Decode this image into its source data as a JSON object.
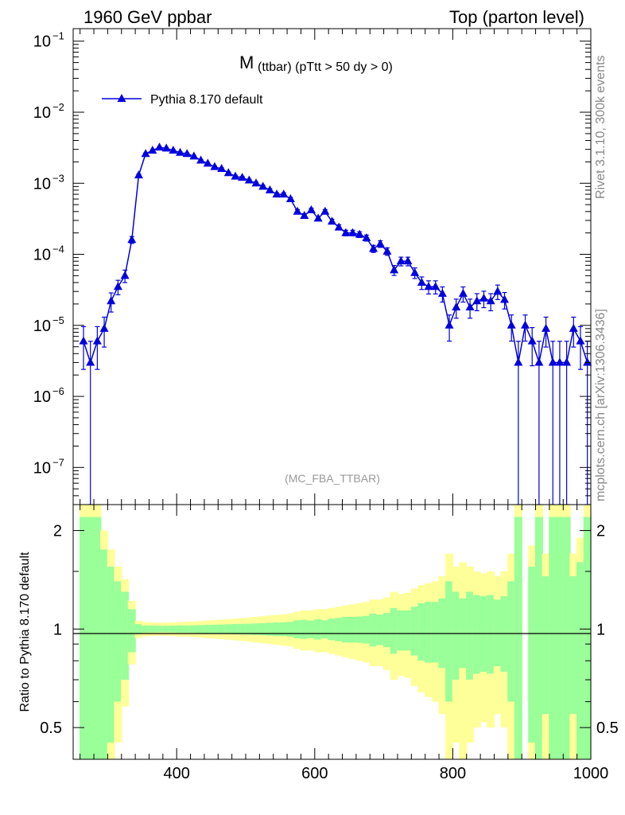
{
  "header": {
    "left": "1960 GeV ppbar",
    "right": "Top (parton level)"
  },
  "side_labels": {
    "top": "Rivet 3.1.10,  300k events",
    "bottom": "mcplots.cern.ch [arXiv:1306.3436]"
  },
  "chart_data": {
    "type": "line",
    "title_main": "M",
    "title_rest": "(ttbar) (pTtt > 50 dy > 0)",
    "watermark": "(MC_FBA_TTBAR)",
    "xlabel": "",
    "ylabel": "",
    "xlim": [
      250,
      1000
    ],
    "ylim": [
      3e-08,
      0.15
    ],
    "y_scale": "log",
    "x_ticks": [
      "400",
      "600",
      "800",
      "1000"
    ],
    "y_ticks_base": [
      "10",
      "10",
      "10",
      "10",
      "10",
      "10",
      "10"
    ],
    "y_ticks_exp": [
      "−1",
      "−2",
      "−3",
      "−4",
      "−5",
      "−6",
      "−7"
    ],
    "legend": {
      "placement": "top-left",
      "entries": [
        "Pythia 8.170 default"
      ]
    },
    "series": [
      {
        "name": "Pythia 8.170 default",
        "color": "#0000dd",
        "x": [
          265,
          275,
          285,
          295,
          305,
          315,
          325,
          335,
          345,
          355,
          365,
          375,
          385,
          395,
          405,
          415,
          425,
          435,
          445,
          455,
          465,
          475,
          485,
          495,
          505,
          515,
          525,
          535,
          545,
          555,
          565,
          575,
          585,
          595,
          605,
          615,
          625,
          635,
          645,
          655,
          665,
          675,
          685,
          695,
          705,
          715,
          725,
          735,
          745,
          755,
          765,
          775,
          785,
          795,
          805,
          815,
          825,
          835,
          845,
          855,
          865,
          875,
          885,
          895,
          905,
          915,
          925,
          935,
          945,
          955,
          965,
          975,
          985,
          995
        ],
        "y": [
          6e-06,
          3e-06,
          6e-06,
          9e-06,
          2.2e-05,
          3.5e-05,
          5e-05,
          0.00016,
          0.0013,
          0.0026,
          0.0029,
          0.0032,
          0.0031,
          0.0029,
          0.0027,
          0.0026,
          0.0024,
          0.0021,
          0.0019,
          0.0017,
          0.0016,
          0.0014,
          0.00125,
          0.0012,
          0.0011,
          0.001,
          0.0009,
          0.0008,
          0.0007,
          0.0007,
          0.0006,
          0.0004,
          0.00035,
          0.00042,
          0.00032,
          0.0004,
          0.00029,
          0.00024,
          0.0002,
          0.0002,
          0.00019,
          0.00017,
          0.00012,
          0.00014,
          0.00011,
          6e-05,
          8e-05,
          8e-05,
          5.5e-05,
          4e-05,
          3.5e-05,
          3.5e-05,
          2.8e-05,
          1e-05,
          1.8e-05,
          2.8e-05,
          1.8e-05,
          2.2e-05,
          2.4e-05,
          2.2e-05,
          3e-05,
          2.3e-05,
          1e-05,
          3e-06,
          1e-05,
          6e-06,
          3e-06,
          9e-06,
          3e-06,
          3e-06,
          3e-06,
          9e-06,
          6e-06,
          3e-06
        ],
        "err": [
          0.6,
          0.99,
          0.6,
          0.45,
          0.3,
          0.23,
          0.2,
          0.11,
          0.035,
          0.025,
          0.024,
          0.023,
          0.023,
          0.024,
          0.025,
          0.025,
          0.026,
          0.028,
          0.03,
          0.031,
          0.032,
          0.034,
          0.036,
          0.037,
          0.038,
          0.04,
          0.042,
          0.045,
          0.048,
          0.048,
          0.052,
          0.063,
          0.067,
          0.062,
          0.071,
          0.064,
          0.075,
          0.082,
          0.09,
          0.09,
          0.092,
          0.097,
          0.115,
          0.107,
          0.12,
          0.16,
          0.14,
          0.14,
          0.17,
          0.2,
          0.21,
          0.21,
          0.24,
          0.4,
          0.3,
          0.24,
          0.3,
          0.27,
          0.26,
          0.27,
          0.23,
          0.26,
          0.4,
          0.99,
          0.4,
          0.55,
          0.99,
          0.45,
          0.99,
          0.99,
          0.99,
          0.45,
          0.6,
          0.99
        ]
      }
    ],
    "ratio": {
      "ylabel": "Ratio to Pythia 8.170 default",
      "ylim": [
        0.4,
        2.4
      ],
      "y_scale": "log",
      "y_ticks": [
        "0.5",
        "1",
        "2"
      ],
      "band_colors": {
        "stat": "#99ff99",
        "total": "#ffff99"
      },
      "stat_err": [
        1.2,
        1.2,
        1.2,
        0.75,
        0.55,
        0.4,
        0.3,
        0.15,
        0.035,
        0.025,
        0.024,
        0.023,
        0.023,
        0.024,
        0.025,
        0.025,
        0.026,
        0.028,
        0.03,
        0.031,
        0.032,
        0.034,
        0.036,
        0.037,
        0.038,
        0.04,
        0.042,
        0.045,
        0.048,
        0.048,
        0.052,
        0.063,
        0.067,
        0.062,
        0.071,
        0.064,
        0.075,
        0.082,
        0.09,
        0.09,
        0.092,
        0.097,
        0.115,
        0.107,
        0.12,
        0.16,
        0.14,
        0.14,
        0.17,
        0.2,
        0.21,
        0.21,
        0.24,
        0.4,
        0.3,
        0.24,
        0.3,
        0.27,
        0.26,
        0.27,
        0.23,
        0.26,
        0.4,
        1.2,
        0,
        0.55,
        1.2,
        0.45,
        1.2,
        1.2,
        1.2,
        0.45,
        0.6,
        1.2
      ],
      "total_err": [
        1.5,
        1.5,
        1.5,
        1.0,
        0.75,
        0.55,
        0.42,
        0.22,
        0.06,
        0.05,
        0.048,
        0.046,
        0.046,
        0.048,
        0.05,
        0.052,
        0.055,
        0.058,
        0.062,
        0.065,
        0.068,
        0.072,
        0.076,
        0.08,
        0.085,
        0.09,
        0.095,
        0.1,
        0.105,
        0.11,
        0.115,
        0.13,
        0.14,
        0.14,
        0.15,
        0.15,
        0.16,
        0.17,
        0.18,
        0.19,
        0.2,
        0.21,
        0.23,
        0.23,
        0.25,
        0.3,
        0.28,
        0.29,
        0.33,
        0.36,
        0.38,
        0.4,
        0.45,
        0.7,
        0.55,
        0.6,
        0.55,
        0.5,
        0.48,
        0.5,
        0.45,
        0.5,
        0.7,
        1.5,
        0,
        0.8,
        1.5,
        0.7,
        1.5,
        1.5,
        1.5,
        0.7,
        0.9,
        1.5
      ]
    }
  }
}
